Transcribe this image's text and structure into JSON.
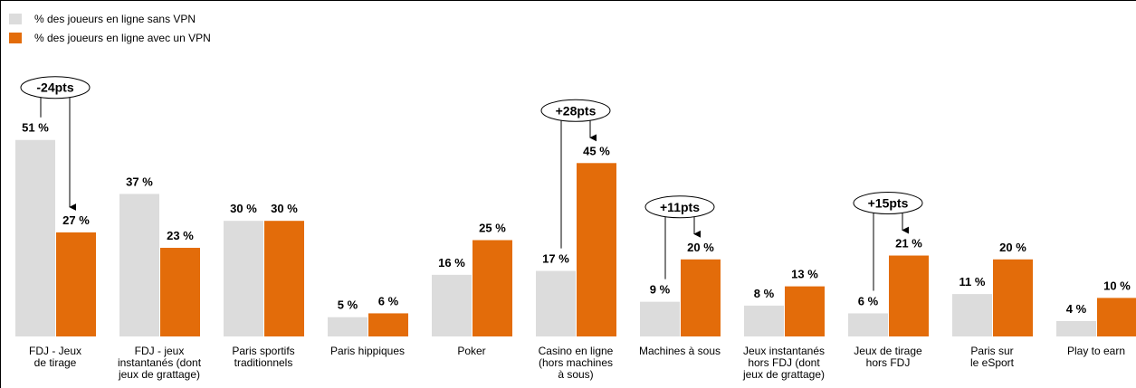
{
  "chart_data": {
    "type": "bar",
    "categories": [
      "FDJ - Jeux\nde tirage",
      "FDJ - jeux\ninstantanés (dont\njeux de grattage)",
      "Paris sportifs\ntraditionnels",
      "Paris hippiques",
      "Poker",
      "Casino en ligne\n(hors machines\nà sous)",
      "Machines à sous",
      "Jeux instantanés\nhors FDJ (dont\njeux de grattage)",
      "Jeux de tirage\nhors FDJ",
      "Paris sur\nle eSport",
      "Play to earn"
    ],
    "series": [
      {
        "name": "% des joueurs en ligne sans VPN",
        "color": "#dcdcdc",
        "values": [
          51,
          37,
          30,
          5,
          16,
          17,
          9,
          8,
          6,
          11,
          4
        ],
        "value_labels": [
          "51 %",
          "37 %",
          "30 %",
          "5 %",
          "16 %",
          "17 %",
          "9 %",
          "8 %",
          "6 %",
          "11 %",
          "4 %"
        ]
      },
      {
        "name": "% des joueurs en ligne avec un VPN",
        "color": "#e36c0a",
        "values": [
          27,
          23,
          30,
          6,
          25,
          45,
          20,
          13,
          21,
          20,
          10
        ],
        "value_labels": [
          "27 %",
          "23 %",
          "30 %",
          "6 %",
          "25 %",
          "45 %",
          "20 %",
          "13 %",
          "21 %",
          "20 %",
          "10 %"
        ]
      }
    ],
    "annotations": [
      {
        "category": 0,
        "text": "-24pts"
      },
      {
        "category": 5,
        "text": "+28pts"
      },
      {
        "category": 6,
        "text": "+11pts"
      },
      {
        "category": 8,
        "text": "+15pts"
      }
    ]
  }
}
